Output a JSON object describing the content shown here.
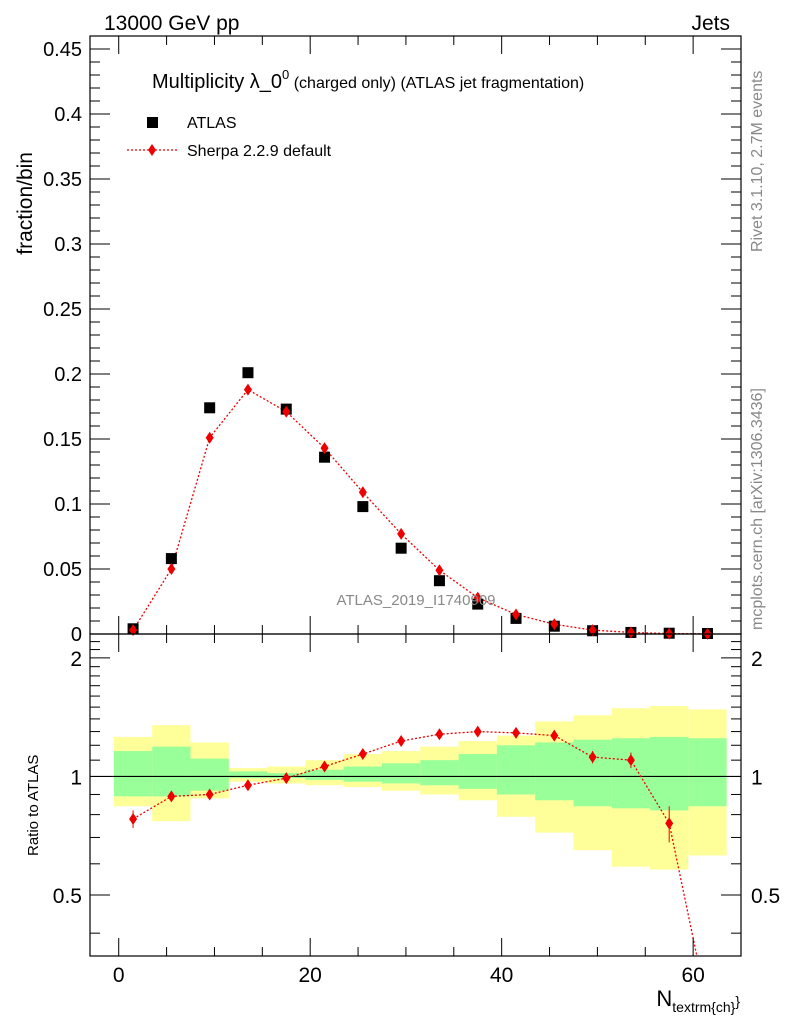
{
  "header": {
    "energy_label": "13000 GeV pp",
    "category_label": "Jets"
  },
  "side_labels": {
    "rivet": "Rivet 3.1.10,  2.7M events",
    "mcplots": "mcplots.cern.ch [arXiv:1306.3436]"
  },
  "watermark": "ATLAS_2019_I1740909",
  "colors": {
    "data": "#000000",
    "mc": "#ee0000",
    "band_inner": "#99ff99",
    "band_outer": "#ffff99"
  },
  "chart_data": [
    {
      "type": "scatter",
      "title_main": "Multiplicity λ_0",
      "title_sup": "0",
      "title_rest": " (charged only) (ATLAS jet fragmentation)",
      "ylabel": "fraction/bin",
      "xlim": [
        -3,
        65
      ],
      "ylim": [
        0,
        0.46
      ],
      "y_ticks": [
        "0",
        "0.05",
        "0.1",
        "0.15",
        "0.2",
        "0.25",
        "0.3",
        "0.35",
        "0.4",
        "0.45"
      ],
      "y_tick_values": [
        0,
        0.05,
        0.1,
        0.15,
        0.2,
        0.25,
        0.3,
        0.35,
        0.4,
        0.45
      ],
      "legend_position": "top-left",
      "series": [
        {
          "name": "ATLAS",
          "marker": "square",
          "x": [
            1.5,
            5.5,
            9.5,
            13.5,
            17.5,
            21.5,
            25.5,
            29.5,
            33.5,
            37.5,
            41.5,
            45.5,
            49.5,
            53.5,
            57.5,
            61.5
          ],
          "y": [
            0.004,
            0.058,
            0.174,
            0.201,
            0.173,
            0.136,
            0.098,
            0.066,
            0.041,
            0.023,
            0.012,
            0.006,
            0.0025,
            0.0012,
            0.0006,
            0.0004
          ]
        },
        {
          "name": "Sherpa 2.2.9 default",
          "marker": "diamond",
          "x": [
            1.5,
            5.5,
            9.5,
            13.5,
            17.5,
            21.5,
            25.5,
            29.5,
            33.5,
            37.5,
            41.5,
            45.5,
            49.5,
            53.5,
            57.5,
            61.5
          ],
          "y": [
            0.003,
            0.05,
            0.151,
            0.188,
            0.171,
            0.143,
            0.109,
            0.077,
            0.049,
            0.028,
            0.015,
            0.0075,
            0.003,
            0.0012,
            0.0003,
            0.0001
          ]
        }
      ]
    },
    {
      "type": "scatter",
      "ylabel": "Ratio to ATLAS",
      "xlabel": "N",
      "xlabel_sub": "textrm{ch}",
      "xlim": [
        -3,
        65
      ],
      "ylim": [
        0.35,
        2.3
      ],
      "y_ticks": [
        "0.5",
        "1",
        "2"
      ],
      "y_tick_values": [
        0.5,
        1,
        2
      ],
      "x_ticks": [
        "0",
        "20",
        "40",
        "60"
      ],
      "x_tick_values": [
        0,
        20,
        40,
        60
      ],
      "reference_line": 1,
      "bins": [
        [
          -0.5,
          3.5
        ],
        [
          3.5,
          7.5
        ],
        [
          7.5,
          11.5
        ],
        [
          11.5,
          15.5
        ],
        [
          15.5,
          19.5
        ],
        [
          19.5,
          23.5
        ],
        [
          23.5,
          27.5
        ],
        [
          27.5,
          31.5
        ],
        [
          31.5,
          35.5
        ],
        [
          35.5,
          39.5
        ],
        [
          39.5,
          43.5
        ],
        [
          43.5,
          47.5
        ],
        [
          47.5,
          51.5
        ],
        [
          51.5,
          55.5
        ],
        [
          55.5,
          59.5
        ],
        [
          59.5,
          63.5
        ]
      ],
      "band_outer": [
        [
          0.84,
          1.26
        ],
        [
          0.77,
          1.35
        ],
        [
          0.88,
          1.22
        ],
        [
          0.97,
          1.05
        ],
        [
          0.96,
          1.06
        ],
        [
          0.95,
          1.1
        ],
        [
          0.94,
          1.14
        ],
        [
          0.92,
          1.16
        ],
        [
          0.9,
          1.19
        ],
        [
          0.87,
          1.23
        ],
        [
          0.79,
          1.27
        ],
        [
          0.72,
          1.38
        ],
        [
          0.65,
          1.43
        ],
        [
          0.59,
          1.49
        ],
        [
          0.58,
          1.51
        ],
        [
          0.63,
          1.48
        ]
      ],
      "band_inner": [
        [
          0.89,
          1.16
        ],
        [
          0.89,
          1.19
        ],
        [
          0.92,
          1.11
        ],
        [
          0.99,
          1.03
        ],
        [
          0.99,
          1.02
        ],
        [
          0.98,
          1.04
        ],
        [
          0.97,
          1.06
        ],
        [
          0.96,
          1.08
        ],
        [
          0.95,
          1.1
        ],
        [
          0.93,
          1.14
        ],
        [
          0.9,
          1.2
        ],
        [
          0.87,
          1.22
        ],
        [
          0.84,
          1.24
        ],
        [
          0.83,
          1.25
        ],
        [
          0.82,
          1.26
        ],
        [
          0.84,
          1.25
        ]
      ],
      "series": [
        {
          "name": "Sherpa 2.2.9 default",
          "marker": "diamond",
          "x": [
            1.5,
            5.5,
            9.5,
            13.5,
            17.5,
            21.5,
            25.5,
            29.5,
            33.5,
            37.5,
            41.5,
            45.5,
            49.5,
            53.5,
            57.5,
            61.5
          ],
          "y": [
            0.78,
            0.89,
            0.9,
            0.95,
            0.99,
            1.06,
            1.14,
            1.23,
            1.28,
            1.3,
            1.29,
            1.27,
            1.12,
            1.1,
            0.76,
            0.26
          ],
          "yerr": [
            0.04,
            0.015,
            0.01,
            0.01,
            0.01,
            0.01,
            0.015,
            0.02,
            0.02,
            0.025,
            0.03,
            0.035,
            0.04,
            0.05,
            0.08,
            0.1
          ]
        }
      ]
    }
  ]
}
